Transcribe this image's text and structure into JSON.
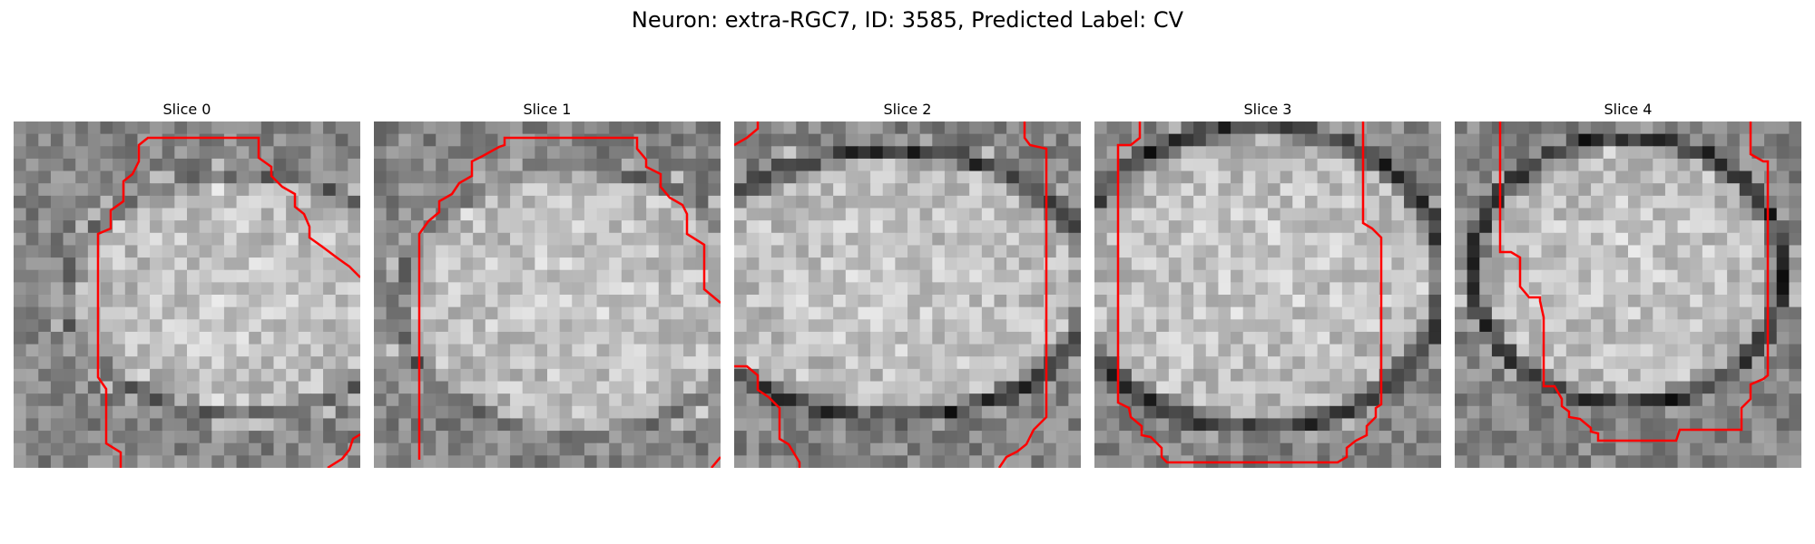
{
  "figure": {
    "title": "Neuron: extra-RGC7, ID: 3585, Predicted Label: CV"
  },
  "colors": {
    "contour": "#ff0000",
    "dark_band": "#2e2e2e",
    "bright_core": "#d8d8d8",
    "mid_gray": "#8a8a8a"
  },
  "panels": [
    {
      "title": "Slice 0"
    },
    {
      "title": "Slice 1"
    },
    {
      "title": "Slice 2"
    },
    {
      "title": "Slice 3"
    },
    {
      "title": "Slice 4"
    }
  ]
}
